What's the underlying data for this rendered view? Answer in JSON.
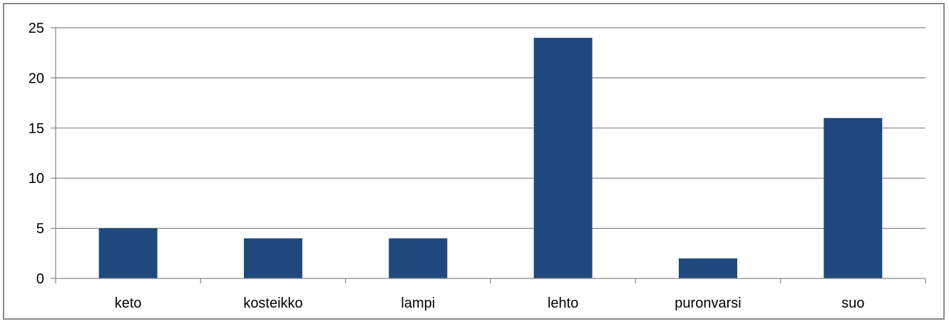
{
  "chart_data": {
    "type": "bar",
    "title": "",
    "xlabel": "",
    "ylabel": "",
    "categories": [
      "keto",
      "kosteikko",
      "lampi",
      "lehto",
      "puronvarsi",
      "suo"
    ],
    "values": [
      5,
      4,
      4,
      24,
      2,
      16
    ],
    "ylim": [
      0,
      25
    ],
    "yticks": [
      0,
      5,
      10,
      15,
      20,
      25
    ],
    "grid": true,
    "legend": "none",
    "bar_color": "#1f497d",
    "grid_color": "#868686"
  }
}
